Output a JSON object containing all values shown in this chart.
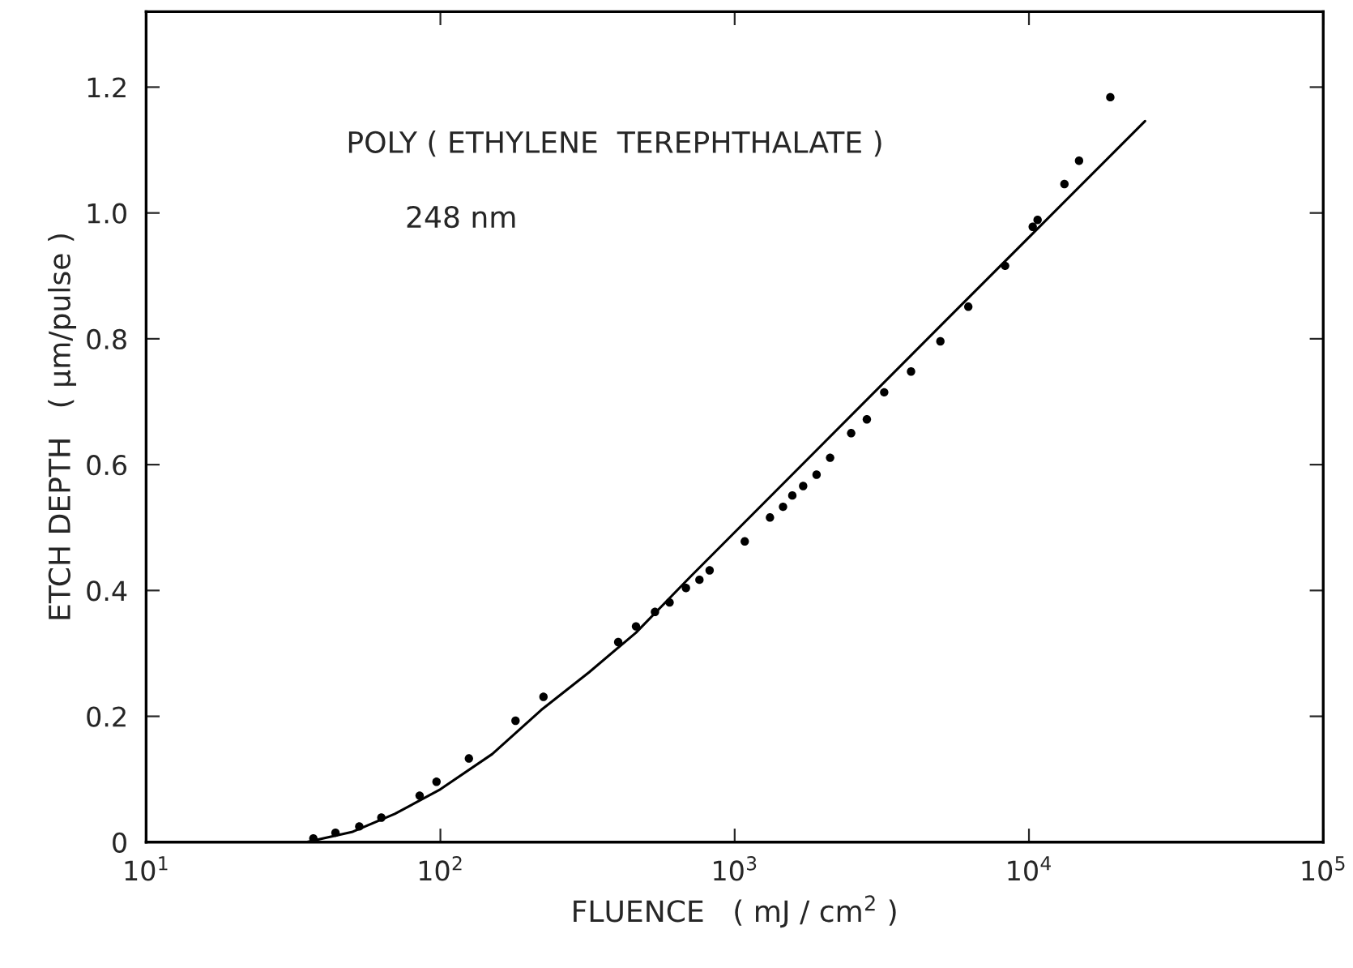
{
  "chart_data": {
    "type": "scatter",
    "xlabel": "FLUENCE   ( mJ / cm$^{2}$ )",
    "ylabel": "ETCH DEPTH   ( μm/pulse )",
    "annotations": [
      "POLY ( ETHYLENE  TEREPHTHALATE )",
      "248 nm"
    ],
    "log": "x",
    "grid": false,
    "xlim": [
      10,
      100000
    ],
    "xticks": [
      {
        "value": 10,
        "label": "10$^{1}$"
      },
      {
        "value": 100,
        "label": "10$^{2}$"
      },
      {
        "value": 1000,
        "label": "10$^{3}$"
      },
      {
        "value": 10000,
        "label": "10$^{4}$"
      },
      {
        "value": 100000,
        "label": "10$^{5}$"
      }
    ],
    "ylim": [
      0,
      1.32
    ],
    "yticks": [
      0,
      {
        "value": 0.2,
        "label": "0.2"
      },
      {
        "value": 0.4,
        "label": "0.4"
      },
      {
        "value": 0.6,
        "label": "0.6"
      },
      {
        "value": 0.8,
        "label": "0.8"
      },
      {
        "value": 1.0,
        "label": "1.0"
      },
      {
        "value": 1.2,
        "label": "1.2"
      }
    ],
    "series": [
      {
        "color": "#000000",
        "marker": "circle",
        "x": [
          37,
          44,
          53,
          63,
          85,
          97,
          125,
          180,
          224,
          402,
          462,
          536,
          601,
          683,
          759,
          822,
          1082,
          1318,
          1460,
          1570,
          1709,
          1898,
          2110,
          2488,
          2813,
          3222,
          3975,
          5000,
          6222,
          8298,
          10300,
          10700,
          13200,
          14800,
          18900
        ],
        "values": [
          0.006,
          0.015,
          0.025,
          0.039,
          0.074,
          0.096,
          0.133,
          0.193,
          0.231,
          0.318,
          0.343,
          0.366,
          0.381,
          0.404,
          0.417,
          0.432,
          0.478,
          0.516,
          0.533,
          0.551,
          0.566,
          0.584,
          0.611,
          0.65,
          0.672,
          0.715,
          0.748,
          0.796,
          0.851,
          0.916,
          0.978,
          0.989,
          1.046,
          1.083,
          1.184
        ]
      },
      {
        "type": "line",
        "color": "#000000",
        "marker": "none",
        "line_style": "solid",
        "x": [
          35,
          50,
          70,
          100,
          150,
          220,
          320,
          462,
          711,
          5190,
          24800
        ],
        "values": [
          0,
          0.016,
          0.045,
          0.084,
          0.14,
          0.21,
          0.27,
          0.333,
          0.423,
          0.828,
          1.146
        ]
      }
    ]
  }
}
